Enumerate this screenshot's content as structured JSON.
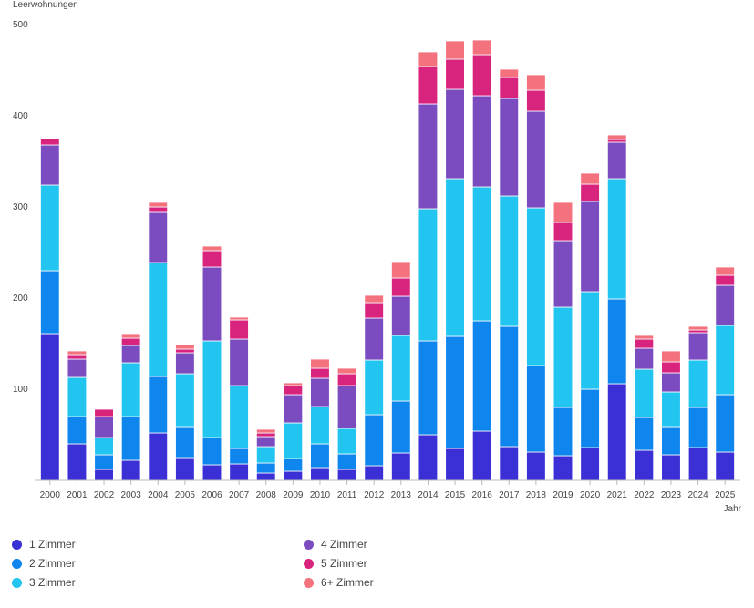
{
  "chart_data": {
    "type": "bar",
    "stacked": true,
    "title": "",
    "ylabel": "Leerwohnungen",
    "xlabel": "Jahr",
    "ylim": [
      0,
      500
    ],
    "yticks": [
      100,
      200,
      300,
      400,
      500
    ],
    "grid": false,
    "legend_position": "bottom",
    "categories": [
      "2000",
      "2001",
      "2002",
      "2003",
      "2004",
      "2005",
      "2006",
      "2007",
      "2008",
      "2009",
      "2010",
      "2011",
      "2012",
      "2013",
      "2014",
      "2015",
      "2016",
      "2017",
      "2018",
      "2019",
      "2020",
      "2021",
      "2022",
      "2023",
      "2024",
      "2025"
    ],
    "series": [
      {
        "name": "1 Zimmer",
        "color": "#3b2fd6",
        "values": [
          161,
          40,
          12,
          22,
          52,
          25,
          17,
          18,
          8,
          10,
          14,
          12,
          16,
          30,
          50,
          35,
          54,
          37,
          31,
          27,
          36,
          106,
          33,
          28,
          36,
          31
        ]
      },
      {
        "name": "2 Zimmer",
        "color": "#0f86ee",
        "values": [
          69,
          30,
          16,
          48,
          62,
          34,
          30,
          17,
          11,
          14,
          26,
          17,
          56,
          57,
          103,
          123,
          121,
          132,
          95,
          53,
          64,
          93,
          36,
          31,
          44,
          63
        ]
      },
      {
        "name": "3 Zimmer",
        "color": "#22c4f0",
        "values": [
          94,
          43,
          19,
          59,
          125,
          58,
          106,
          69,
          18,
          39,
          41,
          28,
          60,
          72,
          145,
          173,
          147,
          143,
          173,
          110,
          107,
          132,
          53,
          38,
          52,
          76
        ]
      },
      {
        "name": "4 Zimmer",
        "color": "#7b4cc0",
        "values": [
          44,
          20,
          23,
          19,
          55,
          23,
          81,
          51,
          11,
          31,
          31,
          47,
          46,
          43,
          115,
          98,
          100,
          107,
          106,
          73,
          99,
          40,
          23,
          21,
          30,
          44
        ]
      },
      {
        "name": "5 Zimmer",
        "color": "#d9247e",
        "values": [
          7,
          5,
          8,
          8,
          6,
          4,
          18,
          21,
          4,
          10,
          11,
          13,
          17,
          20,
          41,
          33,
          45,
          23,
          23,
          20,
          19,
          3,
          10,
          12,
          3,
          11
        ]
      },
      {
        "name": "6+ Zimmer",
        "color": "#f4717e",
        "values": [
          0,
          4,
          0,
          5,
          5,
          5,
          5,
          3,
          4,
          3,
          10,
          6,
          8,
          18,
          16,
          20,
          16,
          9,
          17,
          22,
          12,
          5,
          4,
          12,
          4,
          9
        ]
      }
    ]
  }
}
